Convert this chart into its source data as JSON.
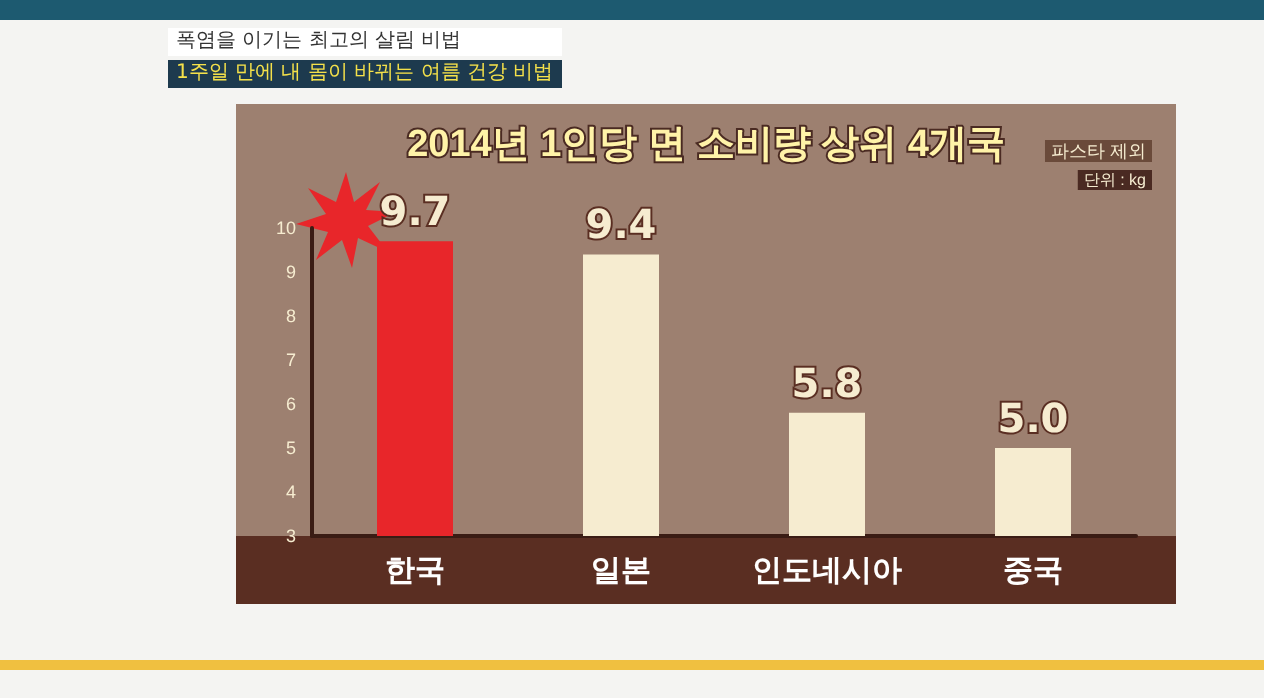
{
  "chart_data": {
    "type": "bar",
    "title": "2014년 1인당 면 소비량 상위 4개국",
    "annotations": [
      "폭염을 이기는 최고의 살림 비법",
      "1주일 만에 내 몸이 바뀌는 여름 건강 비법",
      "파스타 제외",
      "단위 : kg"
    ],
    "categories": [
      "한국",
      "일본",
      "인도네시아",
      "중국"
    ],
    "values": [
      9.7,
      9.4,
      5.8,
      5.0
    ],
    "colors": [
      "#e8262a",
      "#f6ecd0",
      "#f6ecd0",
      "#f6ecd0"
    ],
    "ylim": [
      3,
      10
    ],
    "yticks": [
      3,
      4,
      5,
      6,
      7,
      8,
      9,
      10
    ],
    "value_labels": [
      "9.7",
      "9.4",
      "5.8",
      "5.0"
    ]
  }
}
